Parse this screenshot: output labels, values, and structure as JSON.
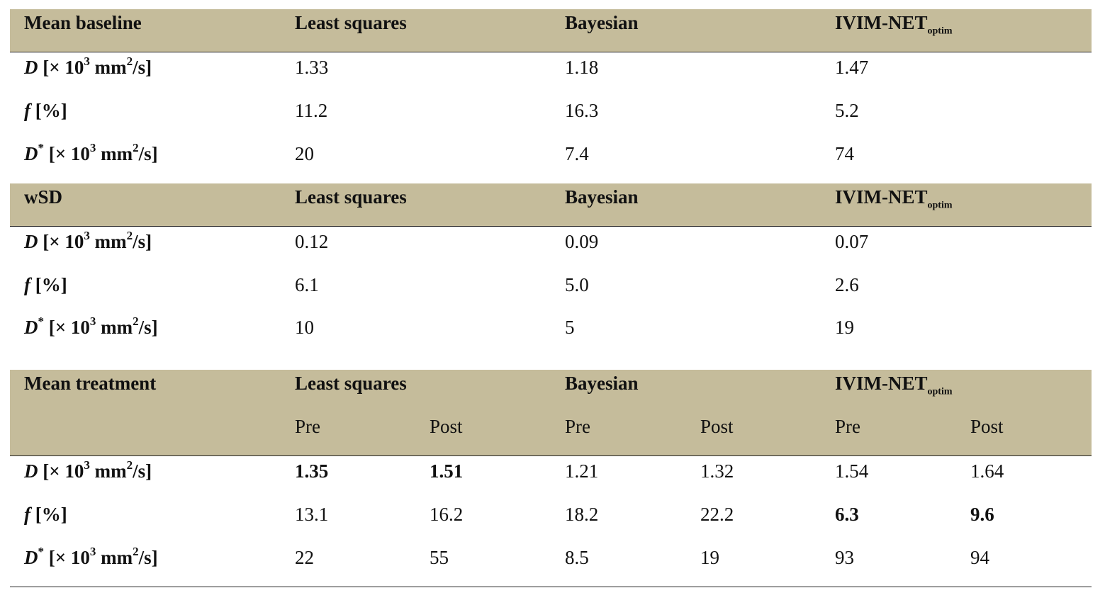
{
  "colors": {
    "header_band": "#c5bc9b",
    "rule": "#222222"
  },
  "methods": {
    "least_squares": "Least squares",
    "bayesian": "Bayesian",
    "ivim_main": "IVIM-NET",
    "ivim_sub": "optim"
  },
  "params": {
    "D": {
      "sym": "D",
      "unit_pre": "[× 10",
      "exp": "3",
      "unit_mid": " mm",
      "exp2": "2",
      "unit_post": "/s]"
    },
    "f": {
      "sym": "f",
      "unit": " [%]"
    },
    "Dstar": {
      "sym": "D",
      "star": "*",
      "unit_pre": " [× 10",
      "exp": "3",
      "unit_mid": " mm",
      "exp2": "2",
      "unit_post": "/s]"
    }
  },
  "baseline": {
    "title": "Mean baseline",
    "rows": [
      {
        "values": [
          "1.33",
          "1.18",
          "1.47"
        ]
      },
      {
        "values": [
          "11.2",
          "16.3",
          "5.2"
        ]
      },
      {
        "values": [
          "20",
          "7.4",
          "74"
        ]
      }
    ]
  },
  "wsd": {
    "title": "wSD",
    "rows": [
      {
        "values": [
          "0.12",
          "0.09",
          "0.07"
        ]
      },
      {
        "values": [
          "6.1",
          "5.0",
          "2.6"
        ]
      },
      {
        "values": [
          "10",
          "5",
          "19"
        ]
      }
    ]
  },
  "treatment": {
    "title": "Mean treatment",
    "pre_label": "Pre",
    "post_label": "Post",
    "rows": [
      {
        "values": [
          "1.35",
          "1.51",
          "1.21",
          "1.32",
          "1.54",
          "1.64"
        ],
        "bold": [
          true,
          true,
          false,
          false,
          false,
          false
        ]
      },
      {
        "values": [
          "13.1",
          "16.2",
          "18.2",
          "22.2",
          "6.3",
          "9.6"
        ],
        "bold": [
          false,
          false,
          false,
          false,
          true,
          true
        ]
      },
      {
        "values": [
          "22",
          "55",
          "8.5",
          "19",
          "93",
          "94"
        ],
        "bold": [
          false,
          false,
          false,
          false,
          false,
          false
        ]
      }
    ]
  }
}
